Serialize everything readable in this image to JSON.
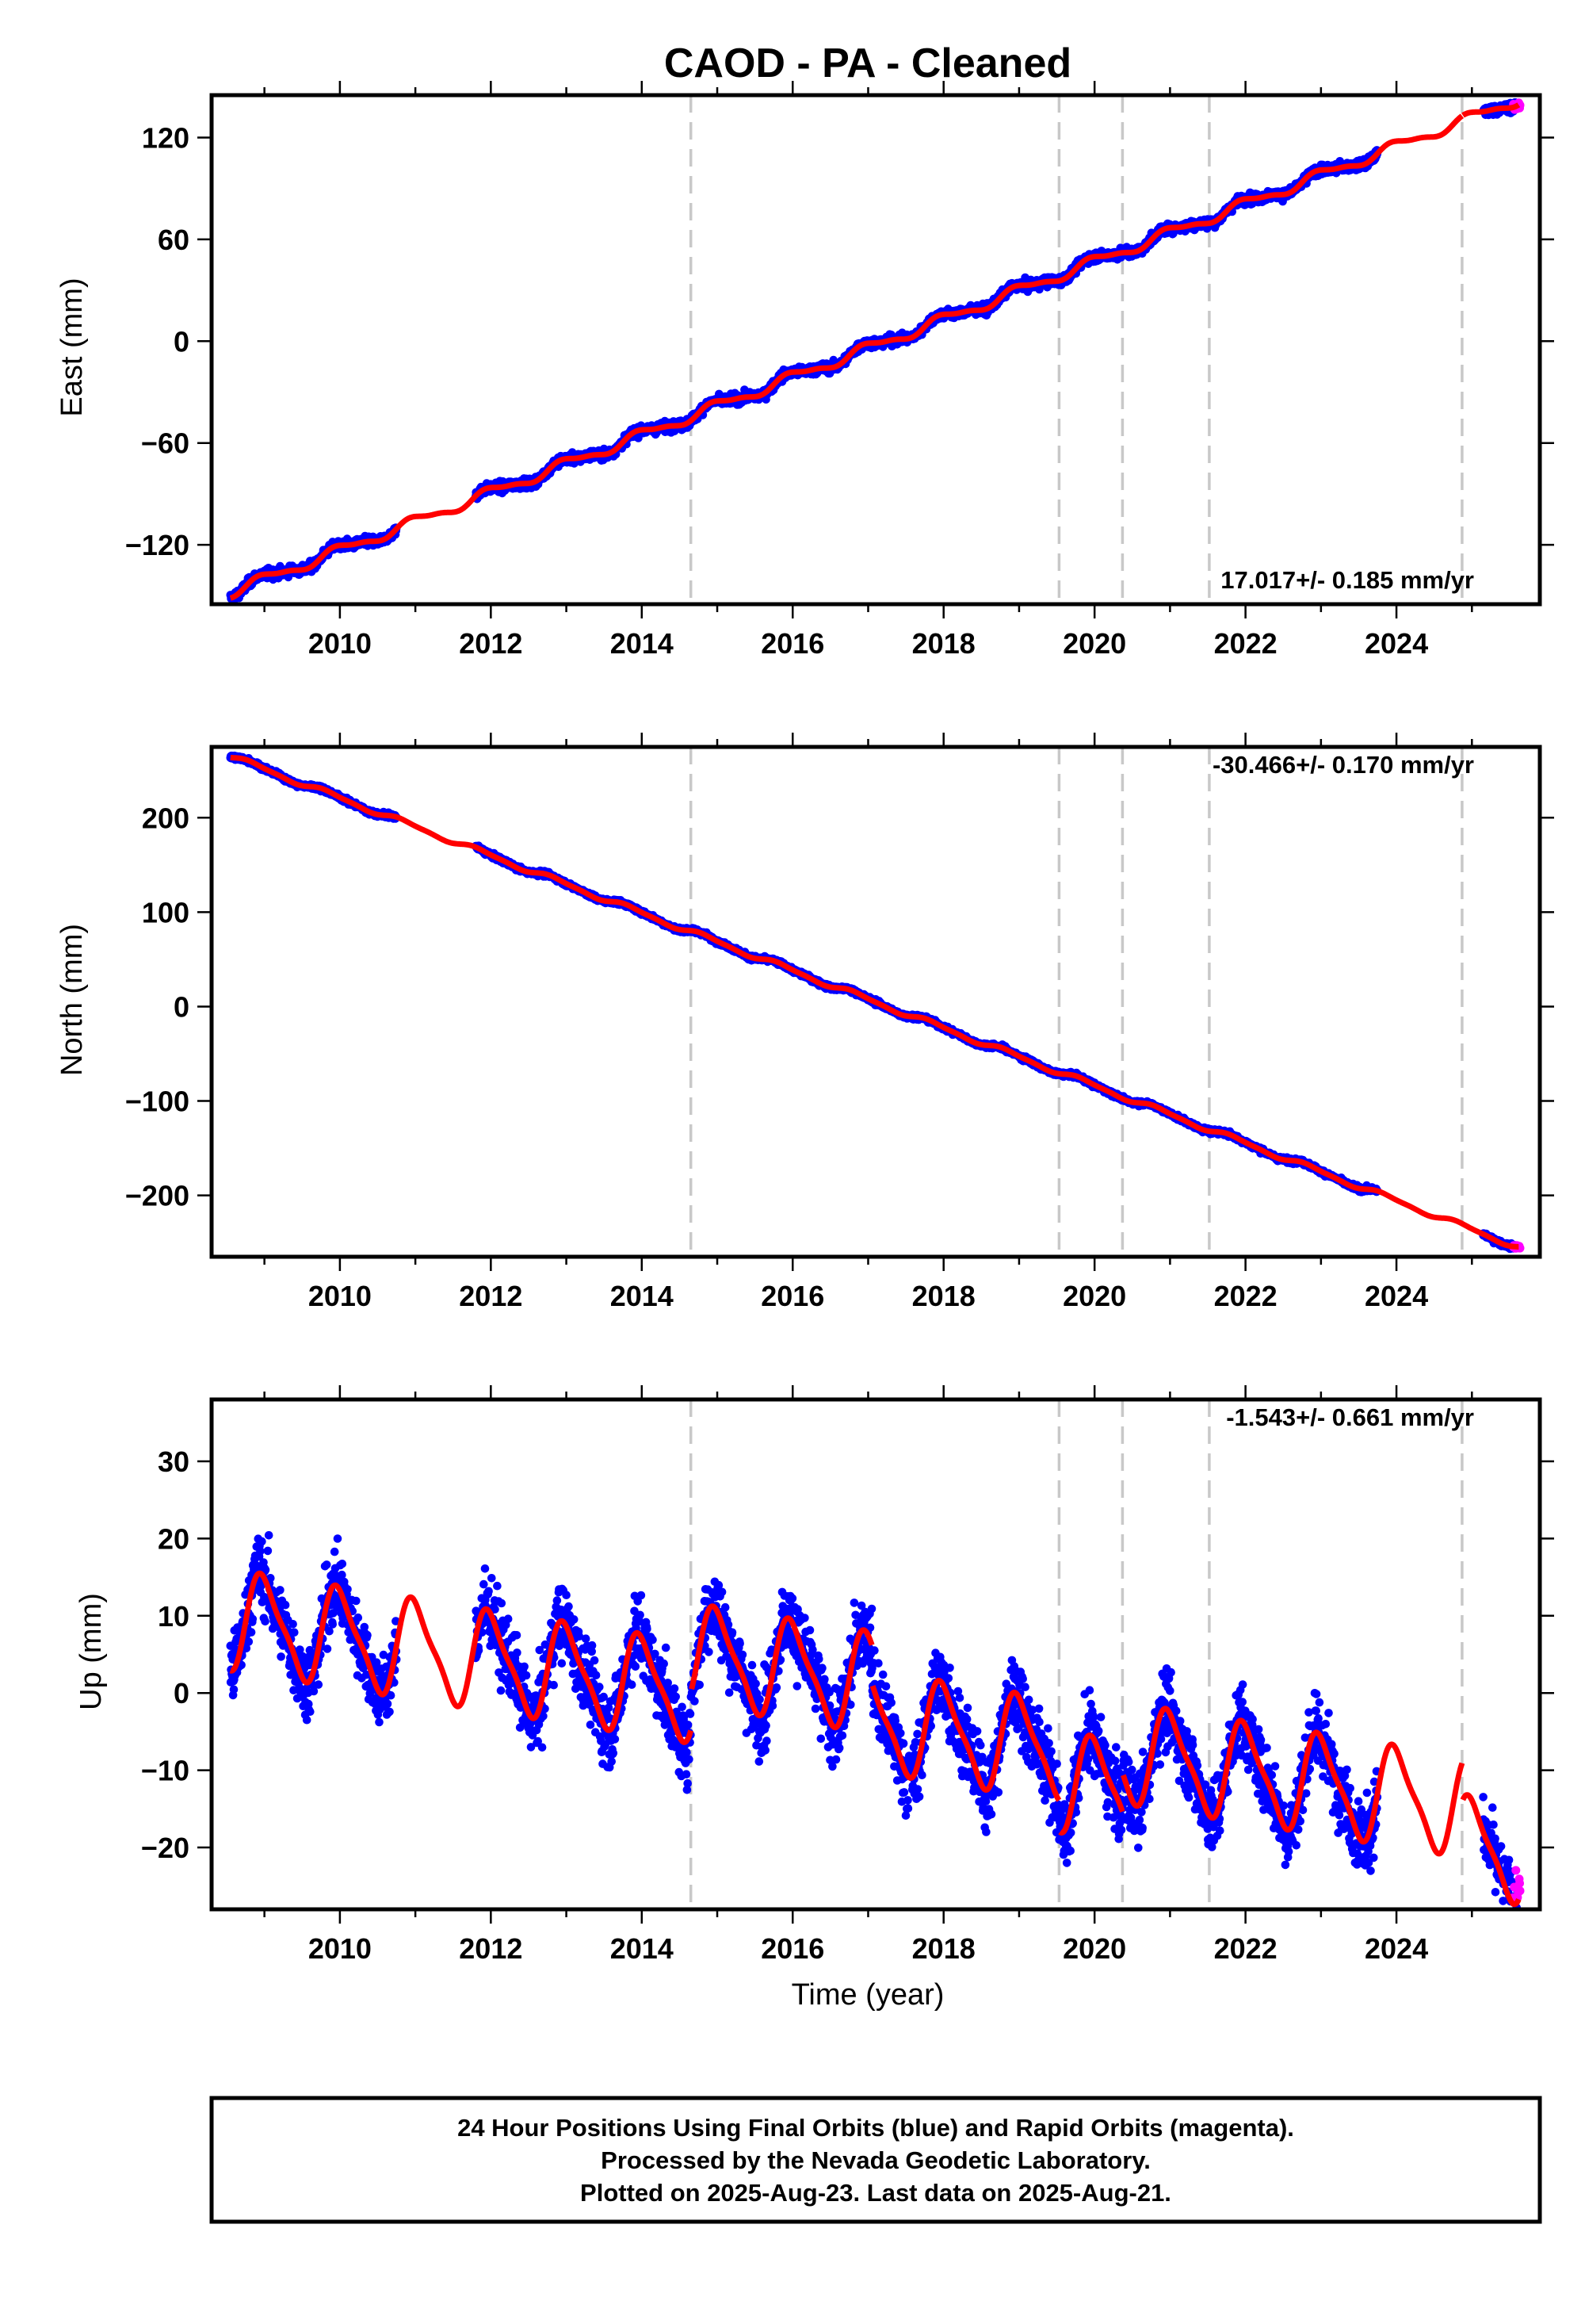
{
  "title": "CAOD  - PA - Cleaned",
  "xlabel": "Time (year)",
  "footer": {
    "line1": "24 Hour Positions Using Final Orbits (blue) and Rapid Orbits (magenta).",
    "line2": "Processed by the Nevada Geodetic Laboratory.",
    "line3": "Plotted on 2025-Aug-23. Last data on 2025-Aug-21."
  },
  "colors": {
    "final_orbits": "#0000ff",
    "rapid_orbits": "#ff00ff",
    "model": "#ff0000",
    "event_lines": "#c8c8c8"
  },
  "chart_data": [
    {
      "type": "scatter",
      "name": "east",
      "ylabel": "East (mm)",
      "rate_label": "17.017+/- 0.185 mm/yr",
      "rate_position": "bottom-right",
      "xlim": [
        2008.3,
        2025.9
      ],
      "ylim": [
        -155,
        145
      ],
      "xticks": [
        2010,
        2012,
        2014,
        2016,
        2018,
        2020,
        2022,
        2024
      ],
      "xtick_labels": [
        "2010",
        "2012",
        "2014",
        "2016",
        "2018",
        "2020",
        "2022",
        "2024"
      ],
      "yticks": [
        -120,
        -60,
        0,
        60,
        120
      ],
      "ytick_labels": [
        "−120",
        "−60",
        "0",
        "60",
        "120"
      ],
      "event_lines_x": [
        2014.65,
        2019.53,
        2020.37,
        2021.52,
        2024.87
      ],
      "data_segments": [
        [
          2008.55,
          2010.75
        ],
        [
          2011.8,
          2023.75
        ],
        [
          2025.15,
          2025.6
        ]
      ],
      "rapid_segment": [
        2025.55,
        2025.64
      ],
      "model": {
        "slope_mm_per_yr": 17.017,
        "value_at_2008_55": -148,
        "annual_amp": 3.0,
        "annual_phase_year": 2008.75,
        "semiannual_amp": 1.0,
        "offsets": [
          {
            "x": 2024.87,
            "dy": 0
          }
        ]
      },
      "scatter_sigma": 2.0,
      "grid": false
    },
    {
      "type": "scatter",
      "name": "north",
      "ylabel": "North (mm)",
      "rate_label": "-30.466+/- 0.170 mm/yr",
      "rate_position": "top-right",
      "xlim": [
        2008.3,
        2025.9
      ],
      "ylim": [
        -265,
        275
      ],
      "xticks": [
        2010,
        2012,
        2014,
        2016,
        2018,
        2020,
        2022,
        2024
      ],
      "xtick_labels": [
        "2010",
        "2012",
        "2014",
        "2016",
        "2018",
        "2020",
        "2022",
        "2024"
      ],
      "yticks": [
        -200,
        -100,
        0,
        100,
        200
      ],
      "ytick_labels": [
        "−200",
        "−100",
        "0",
        "100",
        "200"
      ],
      "event_lines_x": [
        2014.65,
        2019.53,
        2020.37,
        2021.52,
        2024.87
      ],
      "data_segments": [
        [
          2008.55,
          2010.75
        ],
        [
          2011.8,
          2023.75
        ],
        [
          2025.15,
          2025.6
        ]
      ],
      "rapid_segment": [
        2025.55,
        2025.64
      ],
      "model": {
        "slope_mm_per_yr": -30.466,
        "value_at_2008_55": 265,
        "annual_amp": 2.5,
        "annual_phase_year": 2008.6,
        "semiannual_amp": 0.8,
        "offsets": []
      },
      "scatter_sigma": 1.8,
      "grid": false
    },
    {
      "type": "scatter",
      "name": "up",
      "ylabel": "Up (mm)",
      "rate_label": "-1.543+/- 0.661 mm/yr",
      "rate_position": "top-right",
      "xlim": [
        2008.3,
        2025.9
      ],
      "ylim": [
        -28,
        38
      ],
      "xticks": [
        2010,
        2012,
        2014,
        2016,
        2018,
        2020,
        2022,
        2024
      ],
      "xtick_labels": [
        "2010",
        "2012",
        "2014",
        "2016",
        "2018",
        "2020",
        "2022",
        "2024"
      ],
      "yticks": [
        -20,
        -10,
        0,
        10,
        20,
        30
      ],
      "ytick_labels": [
        "−20",
        "−10",
        "0",
        "10",
        "20",
        "30"
      ],
      "event_lines_x": [
        2014.65,
        2019.53,
        2020.37,
        2021.52,
        2024.87
      ],
      "data_segments": [
        [
          2008.55,
          2010.75
        ],
        [
          2011.8,
          2023.75
        ],
        [
          2025.15,
          2025.6
        ]
      ],
      "rapid_segment": [
        2025.55,
        2025.64
      ],
      "model": {
        "slope_mm_per_yr": -1.543,
        "value_at_2008_55": 9.5,
        "annual_amp": 6.0,
        "annual_phase_year": 2008.75,
        "semiannual_amp": 1.5,
        "offsets": [
          {
            "x": 2014.65,
            "dy": 5
          },
          {
            "x": 2017.05,
            "dy": -5
          },
          {
            "x": 2019.53,
            "dy": -4
          },
          {
            "x": 2020.37,
            "dy": 5
          },
          {
            "x": 2024.87,
            "dy": -5
          }
        ]
      },
      "scatter_sigma": 3.3,
      "grid": false
    }
  ]
}
